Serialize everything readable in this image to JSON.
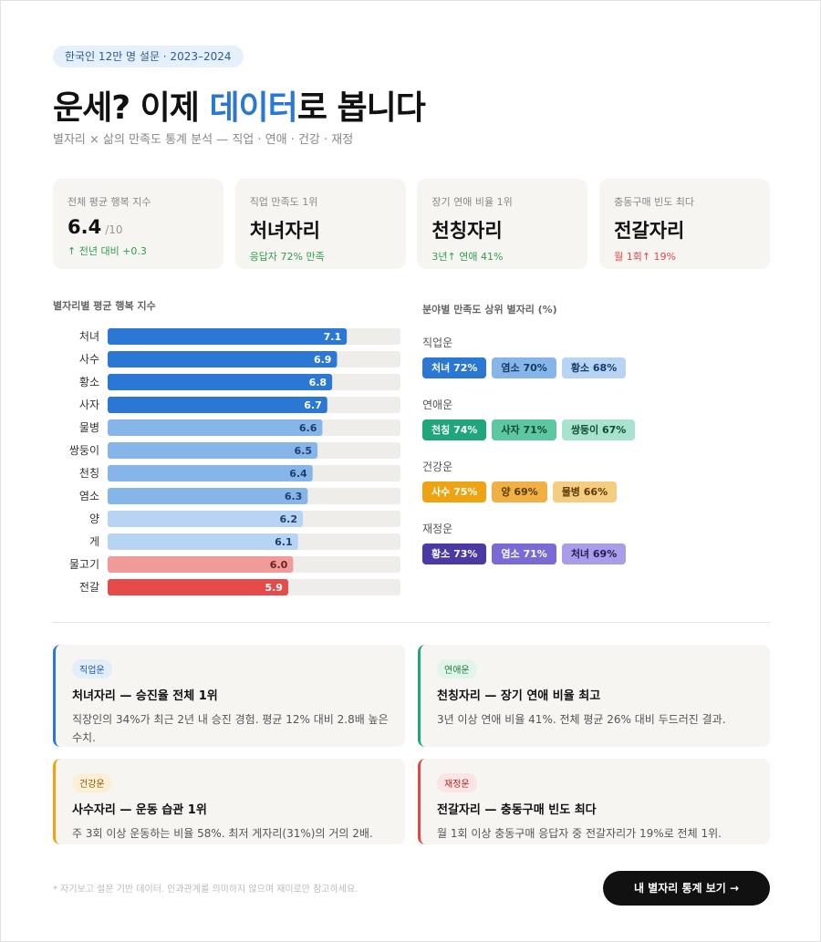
{
  "header": {
    "badge": "한국인 12만 명 설문 · 2023–2024",
    "title_before": "운세? 이제 ",
    "title_highlight": "데이터",
    "title_after": "로 봅니다",
    "subtitle": "별자리 × 삶의 만족도 통계 분석 — 직업 · 연애 · 건강 · 재정"
  },
  "stats": [
    {
      "label": "전체 평균 행복 지수",
      "value": "6.4",
      "unit": "/10",
      "note": "↑ 전년 대비 +0.3",
      "note_color": "#2e9e4f"
    },
    {
      "label": "직업 만족도 1위",
      "value": "처녀자리",
      "note": "응답자 72% 만족",
      "note_color": "#2e9e4f"
    },
    {
      "label": "장기 연애 비율 1위",
      "value": "천칭자리",
      "note": "3년↑ 연애 41%",
      "note_color": "#2e9e4f"
    },
    {
      "label": "충동구매 빈도 최다",
      "value": "전갈자리",
      "note": "월 1회↑ 19%",
      "note_color": "#e04848"
    }
  ],
  "chart_data": {
    "type": "bar",
    "orientation": "horizontal",
    "title": "별자리별 평균 행복 지수",
    "categories": [
      "처녀",
      "사수",
      "황소",
      "사자",
      "물병",
      "쌍둥이",
      "천칭",
      "염소",
      "양",
      "게",
      "물고기",
      "전갈"
    ],
    "values": [
      7.1,
      6.9,
      6.8,
      6.7,
      6.6,
      6.5,
      6.4,
      6.3,
      6.2,
      6.1,
      6.0,
      5.9
    ],
    "value_labels": [
      "7.1",
      "6.9",
      "6.8",
      "6.7",
      "6.6",
      "6.5",
      "6.4",
      "6.3",
      "6.2",
      "6.1",
      "6.0",
      "5.9"
    ],
    "colors": [
      "#2b77d4",
      "#2b77d4",
      "#2b77d4",
      "#2b77d4",
      "#86b5ea",
      "#86b5ea",
      "#86b5ea",
      "#86b5ea",
      "#b7d4f4",
      "#b7d4f4",
      "#f09a9a",
      "#e54b4b"
    ],
    "label_colors": [
      "#ffffff",
      "#ffffff",
      "#ffffff",
      "#ffffff",
      "#1f3f6e",
      "#1f3f6e",
      "#1f3f6e",
      "#1f3f6e",
      "#1f3f6e",
      "#1f3f6e",
      "#6e1f1f",
      "#ffffff"
    ],
    "xlim": [
      2.2,
      8.2
    ],
    "track_color": "#efedea"
  },
  "fields": {
    "title": "분야별 만족도 상위 별자리 (%)",
    "groups": [
      {
        "name": "직업운",
        "tags": [
          {
            "text": "처녀 72%",
            "bg": "#2b77d4",
            "fg": "#ffffff"
          },
          {
            "text": "염소 70%",
            "bg": "#86b5ea",
            "fg": "#173a66"
          },
          {
            "text": "황소 68%",
            "bg": "#b7d4f4",
            "fg": "#173a66"
          }
        ]
      },
      {
        "name": "연애운",
        "tags": [
          {
            "text": "천칭 74%",
            "bg": "#1fa67a",
            "fg": "#ffffff"
          },
          {
            "text": "사자 71%",
            "bg": "#5cc7a0",
            "fg": "#0f4a36"
          },
          {
            "text": "쌍둥이 67%",
            "bg": "#a8e3cd",
            "fg": "#0f4a36"
          }
        ]
      },
      {
        "name": "건강운",
        "tags": [
          {
            "text": "사수 75%",
            "bg": "#eda312",
            "fg": "#ffffff"
          },
          {
            "text": "양 69%",
            "bg": "#f0b044",
            "fg": "#5a3a00"
          },
          {
            "text": "물병 66%",
            "bg": "#f6cc80",
            "fg": "#5a3a00"
          }
        ]
      },
      {
        "name": "재정운",
        "tags": [
          {
            "text": "황소 73%",
            "bg": "#4b3aa6",
            "fg": "#ffffff"
          },
          {
            "text": "염소 71%",
            "bg": "#7a6ad6",
            "fg": "#ffffff"
          },
          {
            "text": "처녀 69%",
            "bg": "#a99de8",
            "fg": "#241a5c"
          }
        ]
      }
    ]
  },
  "cards": [
    {
      "tag": "직업운",
      "title": "처녀자리 — 승진율 전체 1위",
      "body": "직장인의 34%가 최근 2년 내 승진 경험. 평균 12% 대비 2.8배 높은 수치.",
      "color": "#2b77d4",
      "tag_bg": "#e3eefb",
      "tag_fg": "#1f5aa8"
    },
    {
      "tag": "연애운",
      "title": "천칭자리 — 장기 연애 비율 최고",
      "body": "3년 이상 연애 비율 41%. 전체 평균 26% 대비 두드러진 결과.",
      "color": "#1fa67a",
      "tag_bg": "#e2f5ea",
      "tag_fg": "#1d7a3a"
    },
    {
      "tag": "건강운",
      "title": "사수자리 — 운동 습관 1위",
      "body": "주 3회 이상 운동하는 비율 58%. 최저 게자리(31%)의 거의 2배.",
      "color": "#eda312",
      "tag_bg": "#fbefd6",
      "tag_fg": "#8a5a00"
    },
    {
      "tag": "재정운",
      "title": "전갈자리 — 충동구매 빈도 최다",
      "body": "월 1회 이상 충동구매 응답자 중 전갈자리가 19%로 전체 1위.",
      "color": "#e04848",
      "tag_bg": "#fbe4e4",
      "tag_fg": "#a82a2a"
    }
  ],
  "footer": {
    "note": "* 자기보고 설문 기반 데이터. 인과관계를 의미하지 않으며 재미로만 참고하세요.",
    "button": "내 별자리 통계 보기 →"
  }
}
